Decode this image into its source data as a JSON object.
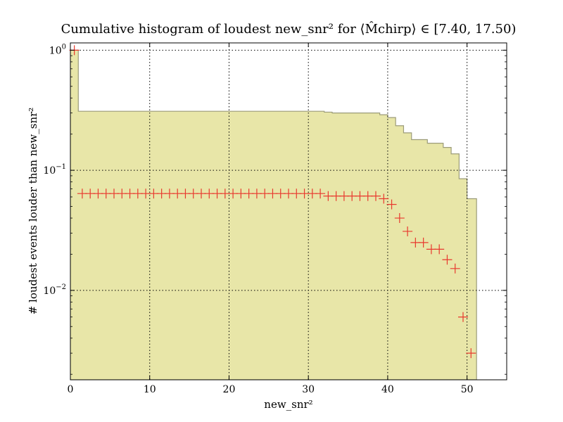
{
  "chart_data": {
    "type": "histogram",
    "title": "Cumulative histogram of loudest new_snr² for ⟨M̂chirp⟩ ∈ [7.40, 17.50)",
    "xlabel": "new_snr²",
    "ylabel": "# loudest events louder than new_snr²",
    "xlim": [
      0,
      55
    ],
    "ylim": [
      0.0018,
      1.15
    ],
    "yscale": "log",
    "grid": true,
    "x_ticks": [
      0,
      10,
      20,
      30,
      40,
      50
    ],
    "y_ticks": [
      {
        "value": 0.01,
        "base": "10",
        "exp": "−2"
      },
      {
        "value": 0.1,
        "base": "10",
        "exp": "−1"
      },
      {
        "value": 1,
        "base": "10",
        "exp": "0"
      }
    ],
    "series": [
      {
        "kind": "cumulative-step",
        "color": "#e8e6a8",
        "edge_color": "#9c9c7a",
        "bin_edges": [
          0.0,
          1.0,
          32.0,
          33.0,
          35.0,
          39.0,
          40.0,
          41.0,
          42.0,
          43.0,
          45.0,
          47.0,
          48.0,
          49.0,
          50.0,
          51.2
        ],
        "values": [
          1.0,
          0.31,
          0.305,
          0.3,
          0.3,
          0.29,
          0.275,
          0.235,
          0.205,
          0.18,
          0.168,
          0.155,
          0.137,
          0.085,
          0.058
        ]
      },
      {
        "kind": "markers",
        "marker": "+",
        "color": "#e8392e",
        "x": [
          0.5,
          1.5,
          2.5,
          3.5,
          4.5,
          5.5,
          6.5,
          7.5,
          8.5,
          9.5,
          10.5,
          11.5,
          12.5,
          13.5,
          14.5,
          15.5,
          16.5,
          17.5,
          18.5,
          19.5,
          20.5,
          21.5,
          22.5,
          23.5,
          24.5,
          25.5,
          26.5,
          27.5,
          28.5,
          29.5,
          30.5,
          31.5,
          32.5,
          33.5,
          34.5,
          35.5,
          36.5,
          37.5,
          38.5,
          39.5,
          40.5,
          41.5,
          42.5,
          43.5,
          44.5,
          45.5,
          46.5,
          47.5,
          48.5,
          49.5,
          50.5
        ],
        "y": [
          1.0,
          0.064,
          0.064,
          0.064,
          0.064,
          0.064,
          0.064,
          0.064,
          0.064,
          0.064,
          0.064,
          0.064,
          0.064,
          0.064,
          0.064,
          0.064,
          0.064,
          0.064,
          0.064,
          0.064,
          0.064,
          0.064,
          0.064,
          0.064,
          0.064,
          0.064,
          0.064,
          0.064,
          0.064,
          0.064,
          0.064,
          0.064,
          0.061,
          0.061,
          0.061,
          0.061,
          0.061,
          0.061,
          0.061,
          0.058,
          0.052,
          0.04,
          0.031,
          0.025,
          0.025,
          0.022,
          0.022,
          0.018,
          0.0152,
          0.006,
          0.003
        ]
      }
    ]
  }
}
